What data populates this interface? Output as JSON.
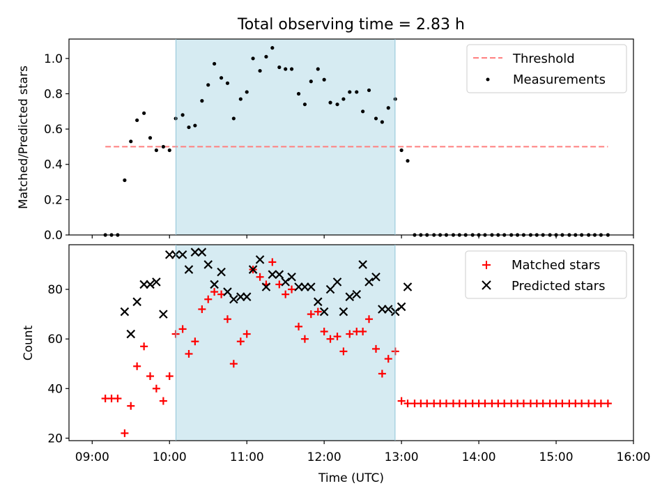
{
  "figure_title": "Total observing time = 2.83 h",
  "x_axis": {
    "label": "Time (UTC)",
    "ticks": [
      "09:00",
      "10:00",
      "11:00",
      "12:00",
      "13:00",
      "14:00",
      "15:00",
      "16:00"
    ],
    "range_hours": [
      8.7,
      16.0
    ]
  },
  "highlight_span": {
    "start_hours": 10.083,
    "end_hours": 12.917,
    "color": "#add8e6"
  },
  "colors": {
    "threshold": "#ff7f7f",
    "measurement": "#000000",
    "matched": "#ff0000",
    "predicted": "#000000",
    "span": "#add8e6"
  },
  "chart_data": [
    {
      "type": "scatter",
      "ylabel": "Matched/Predicted stars",
      "ylim": [
        0,
        1.11
      ],
      "yticks": [
        "0.0",
        "0.2",
        "0.4",
        "0.6",
        "0.8",
        "1.0"
      ],
      "legend_position": "upper-right",
      "threshold": {
        "name": "Threshold",
        "y": 0.5,
        "x_range": [
          9.17,
          15.67
        ],
        "style": "dashed"
      },
      "series": [
        {
          "name": "Measurements",
          "marker": "dot",
          "x": [
            9.17,
            9.25,
            9.33,
            9.42,
            9.5,
            9.58,
            9.67,
            9.75,
            9.83,
            9.92,
            10.0,
            10.08,
            10.17,
            10.25,
            10.33,
            10.42,
            10.5,
            10.58,
            10.67,
            10.75,
            10.83,
            10.92,
            11.0,
            11.08,
            11.17,
            11.25,
            11.33,
            11.42,
            11.5,
            11.58,
            11.67,
            11.75,
            11.83,
            11.92,
            12.0,
            12.08,
            12.17,
            12.25,
            12.33,
            12.42,
            12.5,
            12.58,
            12.67,
            12.75,
            12.83,
            12.92,
            13.0,
            13.08,
            13.17,
            13.25,
            13.33,
            13.42,
            13.5,
            13.58,
            13.67,
            13.75,
            13.83,
            13.92,
            14.0,
            14.08,
            14.17,
            14.25,
            14.33,
            14.42,
            14.5,
            14.58,
            14.67,
            14.75,
            14.83,
            14.92,
            15.0,
            15.08,
            15.17,
            15.25,
            15.33,
            15.42,
            15.5,
            15.58,
            15.67
          ],
          "y": [
            0.0,
            0.0,
            0.0,
            0.31,
            0.53,
            0.65,
            0.69,
            0.55,
            0.48,
            0.5,
            0.48,
            0.66,
            0.68,
            0.61,
            0.62,
            0.76,
            0.85,
            0.97,
            0.89,
            0.86,
            0.66,
            0.77,
            0.81,
            1.0,
            0.93,
            1.01,
            1.06,
            0.95,
            0.94,
            0.94,
            0.8,
            0.74,
            0.87,
            0.94,
            0.88,
            0.75,
            0.74,
            0.77,
            0.81,
            0.81,
            0.7,
            0.82,
            0.66,
            0.64,
            0.72,
            0.77,
            0.48,
            0.42,
            0.0,
            0.0,
            0.0,
            0.0,
            0.0,
            0.0,
            0.0,
            0.0,
            0.0,
            0.0,
            0.0,
            0.0,
            0.0,
            0.0,
            0.0,
            0.0,
            0.0,
            0.0,
            0.0,
            0.0,
            0.0,
            0.0,
            0.0,
            0.0,
            0.0,
            0.0,
            0.0,
            0.0,
            0.0,
            0.0,
            0.0
          ]
        }
      ]
    },
    {
      "type": "scatter",
      "ylabel": "Count",
      "ylim": [
        19,
        98
      ],
      "yticks": [
        "20",
        "40",
        "60",
        "80"
      ],
      "legend_position": "upper-right",
      "series": [
        {
          "name": "Matched stars",
          "marker": "plus",
          "x": [
            9.17,
            9.25,
            9.33,
            9.42,
            9.5,
            9.58,
            9.67,
            9.75,
            9.83,
            9.92,
            10.0,
            10.08,
            10.17,
            10.25,
            10.33,
            10.42,
            10.5,
            10.58,
            10.67,
            10.75,
            10.83,
            10.92,
            11.0,
            11.08,
            11.17,
            11.25,
            11.33,
            11.42,
            11.5,
            11.58,
            11.67,
            11.75,
            11.83,
            11.92,
            12.0,
            12.08,
            12.17,
            12.25,
            12.33,
            12.42,
            12.5,
            12.58,
            12.67,
            12.75,
            12.83,
            12.92,
            13.0,
            13.08,
            13.17,
            13.25,
            13.33,
            13.42,
            13.5,
            13.58,
            13.67,
            13.75,
            13.83,
            13.92,
            14.0,
            14.08,
            14.17,
            14.25,
            14.33,
            14.42,
            14.5,
            14.58,
            14.67,
            14.75,
            14.83,
            14.92,
            15.0,
            15.08,
            15.17,
            15.25,
            15.33,
            15.42,
            15.5,
            15.58,
            15.67
          ],
          "y": [
            36,
            36,
            36,
            22,
            33,
            49,
            57,
            45,
            40,
            35,
            45,
            62,
            64,
            54,
            59,
            72,
            76,
            79,
            78,
            68,
            50,
            59,
            62,
            88,
            85,
            82,
            91,
            82,
            78,
            80,
            65,
            60,
            70,
            71,
            63,
            60,
            61,
            55,
            62,
            63,
            63,
            68,
            56,
            46,
            52,
            55,
            35,
            34,
            34,
            34,
            34,
            34,
            34,
            34,
            34,
            34,
            34,
            34,
            34,
            34,
            34,
            34,
            34,
            34,
            34,
            34,
            34,
            34,
            34,
            34,
            34,
            34,
            34,
            34,
            34,
            34,
            34,
            34,
            34
          ]
        },
        {
          "name": "Predicted stars",
          "marker": "x",
          "x": [
            9.42,
            9.5,
            9.58,
            9.67,
            9.75,
            9.83,
            9.92,
            10.0,
            10.08,
            10.17,
            10.25,
            10.33,
            10.42,
            10.5,
            10.58,
            10.67,
            10.75,
            10.83,
            10.92,
            11.0,
            11.08,
            11.17,
            11.25,
            11.33,
            11.42,
            11.5,
            11.58,
            11.67,
            11.75,
            11.83,
            11.92,
            12.0,
            12.08,
            12.17,
            12.25,
            12.33,
            12.42,
            12.5,
            12.58,
            12.67,
            12.75,
            12.83,
            12.92,
            13.0,
            13.08
          ],
          "y": [
            71,
            62,
            75,
            82,
            82,
            83,
            70,
            94,
            94,
            94,
            88,
            95,
            95,
            90,
            82,
            87,
            79,
            76,
            77,
            77,
            88,
            92,
            81,
            86,
            86,
            83,
            85,
            81,
            81,
            81,
            75,
            71,
            80,
            83,
            71,
            77,
            78,
            90,
            83,
            85,
            72,
            72,
            71,
            73,
            81
          ]
        }
      ]
    }
  ]
}
